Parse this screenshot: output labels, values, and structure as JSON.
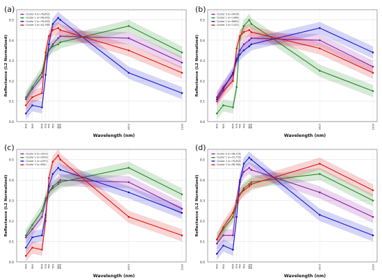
{
  "figure": {
    "shared": {
      "ylabel": "Reflectance (L2 Normalized)",
      "xlabel": "Wavelength (nm)",
      "xticks": [
        490,
        560,
        665,
        705,
        740,
        783,
        842,
        865,
        1610,
        2190
      ],
      "yticks": [
        "0.0",
        "0.1",
        "0.2",
        "0.3",
        "0.4",
        "0.5"
      ],
      "ylim": [
        0,
        0.55
      ]
    },
    "colors": {
      "purple": "#8b1aa8",
      "green": "#1f8a1f",
      "blue": "#1414d2",
      "red": "#e01010"
    }
  },
  "chart_data": [
    {
      "type": "line",
      "panel_label": "(a)",
      "xlabel": "Wavelength (nm)",
      "ylabel": "Reflectance (L2 Normalized)",
      "ylim": [
        0,
        0.55
      ],
      "x": [
        490,
        560,
        665,
        705,
        740,
        783,
        842,
        865,
        1610,
        2190
      ],
      "legend_position": "top-left",
      "grid": true,
      "series": [
        {
          "name": "Cluster 0 (n=78,651)",
          "color": "purple",
          "values": [
            0.11,
            0.16,
            0.22,
            0.31,
            0.35,
            0.38,
            0.41,
            0.42,
            0.41,
            0.29
          ]
        },
        {
          "name": "Cluster 1 (n=56,091)",
          "color": "green",
          "values": [
            0.12,
            0.17,
            0.24,
            0.32,
            0.35,
            0.37,
            0.38,
            0.39,
            0.47,
            0.34
          ]
        },
        {
          "name": "Cluster 2 (n=76,950)",
          "color": "blue",
          "values": [
            0.04,
            0.08,
            0.07,
            0.23,
            0.38,
            0.48,
            0.51,
            0.5,
            0.24,
            0.14
          ]
        },
        {
          "name": "Cluster 3 (n=44,798)",
          "color": "red",
          "values": [
            0.08,
            0.12,
            0.14,
            0.34,
            0.42,
            0.45,
            0.46,
            0.45,
            0.35,
            0.24
          ]
        }
      ]
    },
    {
      "type": "line",
      "panel_label": "(b)",
      "xlabel": "Wavelength (nm)",
      "ylabel": "Reflectance (L2 Normalized)",
      "ylim": [
        0,
        0.55
      ],
      "x": [
        490,
        560,
        665,
        705,
        740,
        783,
        842,
        865,
        1610,
        2190
      ],
      "legend_position": "top-left",
      "grid": true,
      "series": [
        {
          "name": "Cluster 0 (n=3816)",
          "color": "purple",
          "values": [
            0.12,
            0.17,
            0.23,
            0.31,
            0.35,
            0.38,
            0.4,
            0.41,
            0.4,
            0.27
          ]
        },
        {
          "name": "Cluster 1 (n=1368)",
          "color": "green",
          "values": [
            0.04,
            0.08,
            0.07,
            0.17,
            0.41,
            0.47,
            0.5,
            0.48,
            0.25,
            0.15
          ]
        },
        {
          "name": "Cluster 2 (n=8063)",
          "color": "blue",
          "values": [
            0.11,
            0.16,
            0.24,
            0.3,
            0.33,
            0.35,
            0.37,
            0.38,
            0.46,
            0.34
          ]
        },
        {
          "name": "Cluster 3 (n=1142)",
          "color": "red",
          "values": [
            0.1,
            0.15,
            0.2,
            0.36,
            0.42,
            0.44,
            0.45,
            0.44,
            0.36,
            0.24
          ]
        }
      ]
    },
    {
      "type": "line",
      "panel_label": "(c)",
      "xlabel": "Wavelength (nm)",
      "ylabel": "Reflectance (L2 Normalized)",
      "ylim": [
        0,
        0.55
      ],
      "x": [
        490,
        560,
        665,
        705,
        740,
        783,
        842,
        865,
        1610,
        2190
      ],
      "legend_position": "top-left",
      "grid": true,
      "series": [
        {
          "name": "Cluster 0 (n=1023)",
          "color": "purple",
          "values": [
            0.12,
            0.16,
            0.22,
            0.3,
            0.34,
            0.37,
            0.39,
            0.4,
            0.39,
            0.26
          ]
        },
        {
          "name": "Cluster 1 (n=3039)",
          "color": "green",
          "values": [
            0.13,
            0.18,
            0.25,
            0.31,
            0.34,
            0.36,
            0.38,
            0.39,
            0.46,
            0.33
          ]
        },
        {
          "name": "Cluster 2 (n=2597)",
          "color": "blue",
          "values": [
            0.07,
            0.12,
            0.13,
            0.23,
            0.37,
            0.43,
            0.46,
            0.45,
            0.34,
            0.24
          ]
        },
        {
          "name": "Cluster 3 (n=850)",
          "color": "red",
          "values": [
            0.03,
            0.07,
            0.06,
            0.2,
            0.41,
            0.49,
            0.52,
            0.5,
            0.22,
            0.13
          ]
        }
      ]
    },
    {
      "type": "line",
      "panel_label": "(d)",
      "xlabel": "Wavelength (nm)",
      "ylabel": "Reflectance (L2 Normalized)",
      "ylim": [
        0,
        0.55
      ],
      "x": [
        490,
        560,
        665,
        705,
        740,
        783,
        842,
        865,
        1610,
        2190
      ],
      "legend_position": "top-left",
      "grid": true,
      "series": [
        {
          "name": "Cluster 0 (n=46,214)",
          "color": "purple",
          "values": [
            0.09,
            0.13,
            0.13,
            0.3,
            0.4,
            0.44,
            0.46,
            0.45,
            0.34,
            0.22
          ]
        },
        {
          "name": "Cluster 1 (n=52,779)",
          "color": "green",
          "values": [
            0.11,
            0.16,
            0.22,
            0.29,
            0.33,
            0.36,
            0.38,
            0.39,
            0.43,
            0.3
          ]
        },
        {
          "name": "Cluster 2 (n=79,845)",
          "color": "blue",
          "values": [
            0.04,
            0.08,
            0.06,
            0.22,
            0.39,
            0.48,
            0.51,
            0.5,
            0.23,
            0.13
          ]
        },
        {
          "name": "Cluster 3 (n=98,784)",
          "color": "red",
          "values": [
            0.11,
            0.17,
            0.24,
            0.29,
            0.33,
            0.35,
            0.37,
            0.38,
            0.48,
            0.35
          ]
        }
      ]
    }
  ]
}
